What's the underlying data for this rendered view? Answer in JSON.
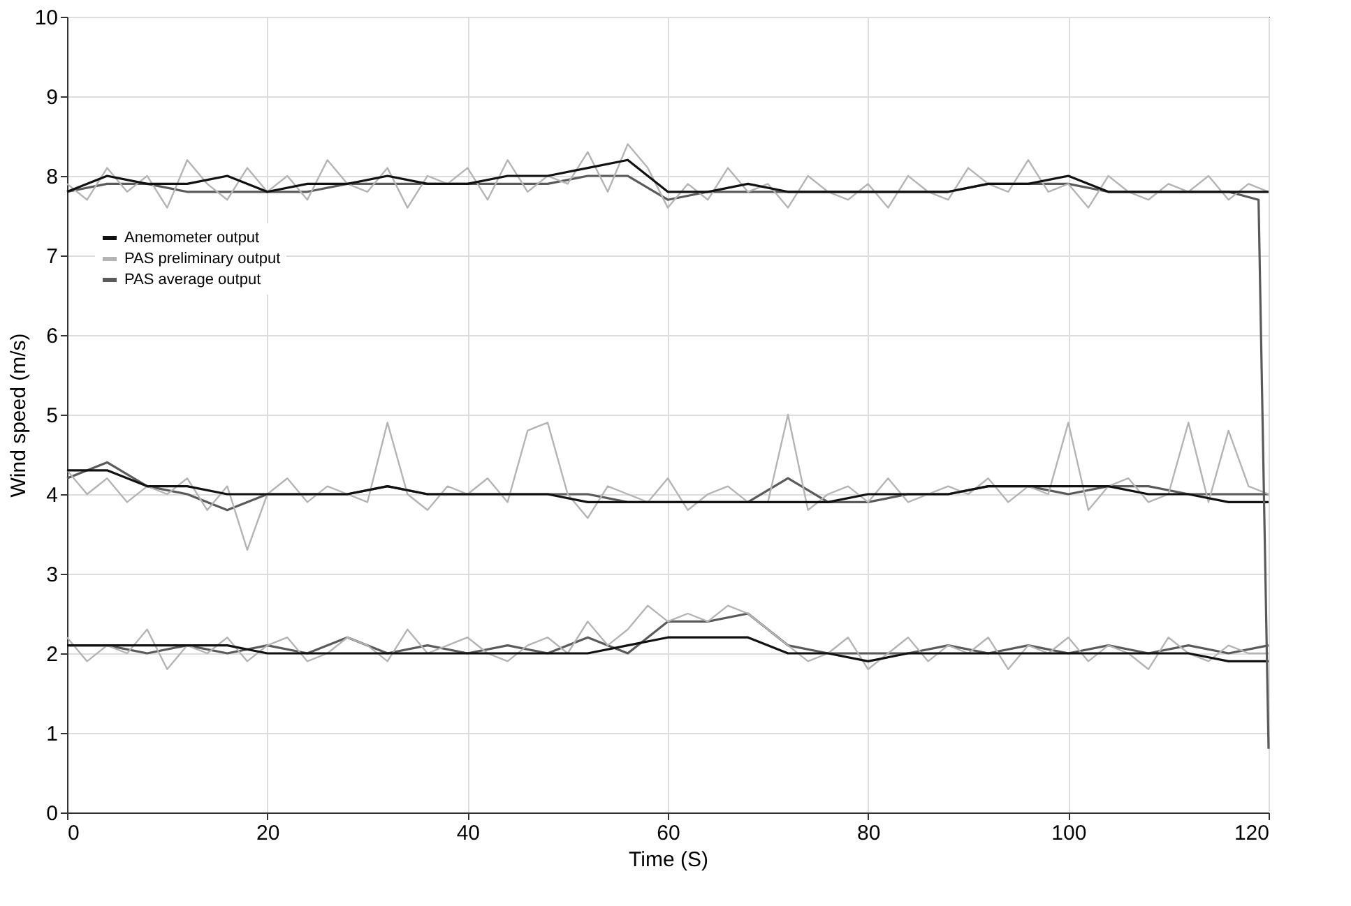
{
  "chart_data": {
    "type": "line",
    "xlabel": "Time (S)",
    "ylabel": "Wind speed (m/s)",
    "x": [
      0,
      4,
      8,
      12,
      16,
      20,
      24,
      28,
      32,
      36,
      40,
      44,
      48,
      52,
      56,
      60,
      64,
      68,
      72,
      76,
      80,
      84,
      88,
      92,
      96,
      100,
      104,
      108,
      112,
      116,
      120
    ],
    "xlim": [
      0,
      120
    ],
    "xticks": [
      0,
      20,
      40,
      60,
      80,
      100,
      120
    ],
    "ylim": [
      0,
      10
    ],
    "yticks": [
      0,
      1,
      2,
      3,
      4,
      5,
      6,
      7,
      8,
      9,
      10
    ],
    "grid": true,
    "legend": "left",
    "series": [
      {
        "name": "Anemometer output",
        "color": "#111111",
        "values": [
          7.8,
          8.0,
          7.9,
          7.9,
          8.0,
          7.8,
          7.9,
          7.9,
          8.0,
          7.9,
          7.9,
          8.0,
          8.0,
          8.1,
          8.2,
          7.8,
          7.8,
          7.9,
          7.8,
          7.8,
          7.8,
          7.8,
          7.8,
          7.9,
          7.9,
          8.0,
          7.8,
          7.8,
          7.8,
          7.8,
          7.8
        ]
      },
      {
        "name": "PAS preliminary output",
        "color": "#b4b4b4",
        "x": [
          0,
          2,
          4,
          6,
          8,
          10,
          12,
          14,
          16,
          18,
          20,
          22,
          24,
          26,
          28,
          30,
          32,
          34,
          36,
          38,
          40,
          42,
          44,
          46,
          48,
          50,
          52,
          54,
          56,
          58,
          60,
          62,
          64,
          66,
          68,
          70,
          72,
          74,
          76,
          78,
          80,
          82,
          84,
          86,
          88,
          90,
          92,
          94,
          96,
          98,
          100,
          102,
          104,
          106,
          108,
          110,
          112,
          114,
          116,
          118,
          120
        ],
        "values": [
          7.9,
          7.7,
          8.1,
          7.8,
          8.0,
          7.6,
          8.2,
          7.9,
          7.7,
          8.1,
          7.8,
          8.0,
          7.7,
          8.2,
          7.9,
          7.8,
          8.1,
          7.6,
          8.0,
          7.9,
          8.1,
          7.7,
          8.2,
          7.8,
          8.0,
          7.9,
          8.3,
          7.8,
          8.4,
          8.1,
          7.6,
          7.9,
          7.7,
          8.1,
          7.8,
          7.9,
          7.6,
          8.0,
          7.8,
          7.7,
          7.9,
          7.6,
          8.0,
          7.8,
          7.7,
          8.1,
          7.9,
          7.8,
          8.2,
          7.8,
          7.9,
          7.6,
          8.0,
          7.8,
          7.7,
          7.9,
          7.8,
          8.0,
          7.7,
          7.9,
          7.8
        ]
      },
      {
        "name": "PAS average output",
        "color": "#5a5a5a",
        "x": [
          0,
          4,
          8,
          12,
          16,
          20,
          24,
          28,
          32,
          36,
          40,
          44,
          48,
          52,
          56,
          60,
          64,
          68,
          72,
          76,
          80,
          84,
          88,
          92,
          96,
          100,
          104,
          108,
          112,
          116,
          119,
          120
        ],
        "values": [
          7.8,
          7.9,
          7.9,
          7.8,
          7.8,
          7.8,
          7.8,
          7.9,
          7.9,
          7.9,
          7.9,
          7.9,
          7.9,
          8.0,
          8.0,
          7.7,
          7.8,
          7.8,
          7.8,
          7.8,
          7.8,
          7.8,
          7.8,
          7.9,
          7.9,
          7.9,
          7.8,
          7.8,
          7.8,
          7.8,
          7.7,
          0.8
        ]
      },
      {
        "color": "#111111",
        "values": [
          4.3,
          4.3,
          4.1,
          4.1,
          4.0,
          4.0,
          4.0,
          4.0,
          4.1,
          4.0,
          4.0,
          4.0,
          4.0,
          3.9,
          3.9,
          3.9,
          3.9,
          3.9,
          3.9,
          3.9,
          4.0,
          4.0,
          4.0,
          4.1,
          4.1,
          4.1,
          4.1,
          4.0,
          4.0,
          3.9,
          3.9
        ]
      },
      {
        "color": "#b4b4b4",
        "x": [
          0,
          2,
          4,
          6,
          8,
          10,
          12,
          14,
          16,
          18,
          20,
          22,
          24,
          26,
          28,
          30,
          32,
          34,
          36,
          38,
          40,
          42,
          44,
          46,
          48,
          50,
          52,
          54,
          56,
          58,
          60,
          62,
          64,
          66,
          68,
          70,
          72,
          74,
          76,
          78,
          80,
          82,
          84,
          86,
          88,
          90,
          92,
          94,
          96,
          98,
          100,
          102,
          104,
          106,
          108,
          110,
          112,
          114,
          116,
          118,
          120
        ],
        "values": [
          4.3,
          4.0,
          4.2,
          3.9,
          4.1,
          4.0,
          4.2,
          3.8,
          4.1,
          3.3,
          4.0,
          4.2,
          3.9,
          4.1,
          4.0,
          3.9,
          4.9,
          4.0,
          3.8,
          4.1,
          4.0,
          4.2,
          3.9,
          4.8,
          4.9,
          4.0,
          3.7,
          4.1,
          4.0,
          3.9,
          4.2,
          3.8,
          4.0,
          4.1,
          3.9,
          3.9,
          5.0,
          3.8,
          4.0,
          4.1,
          3.9,
          4.2,
          3.9,
          4.0,
          4.1,
          4.0,
          4.2,
          3.9,
          4.1,
          4.0,
          4.9,
          3.8,
          4.1,
          4.2,
          3.9,
          4.0,
          4.9,
          3.9,
          4.8,
          4.1,
          4.0
        ]
      },
      {
        "color": "#5a5a5a",
        "values": [
          4.2,
          4.4,
          4.1,
          4.0,
          3.8,
          4.0,
          4.0,
          4.0,
          4.1,
          4.0,
          4.0,
          4.0,
          4.0,
          4.0,
          3.9,
          3.9,
          3.9,
          3.9,
          4.2,
          3.9,
          3.9,
          4.0,
          4.0,
          4.1,
          4.1,
          4.0,
          4.1,
          4.1,
          4.0,
          4.0,
          4.0
        ]
      },
      {
        "color": "#111111",
        "values": [
          2.1,
          2.1,
          2.1,
          2.1,
          2.1,
          2.0,
          2.0,
          2.0,
          2.0,
          2.0,
          2.0,
          2.0,
          2.0,
          2.0,
          2.1,
          2.2,
          2.2,
          2.2,
          2.0,
          2.0,
          1.9,
          2.0,
          2.0,
          2.0,
          2.0,
          2.0,
          2.0,
          2.0,
          2.0,
          1.9,
          1.9
        ]
      },
      {
        "color": "#b4b4b4",
        "x": [
          0,
          2,
          4,
          6,
          8,
          10,
          12,
          14,
          16,
          18,
          20,
          22,
          24,
          26,
          28,
          30,
          32,
          34,
          36,
          38,
          40,
          42,
          44,
          46,
          48,
          50,
          52,
          54,
          56,
          58,
          60,
          62,
          64,
          66,
          68,
          70,
          72,
          74,
          76,
          78,
          80,
          82,
          84,
          86,
          88,
          90,
          92,
          94,
          96,
          98,
          100,
          102,
          104,
          106,
          108,
          110,
          112,
          114,
          116,
          118,
          120
        ],
        "values": [
          2.2,
          1.9,
          2.1,
          2.0,
          2.3,
          1.8,
          2.1,
          2.0,
          2.2,
          1.9,
          2.1,
          2.2,
          1.9,
          2.0,
          2.2,
          2.1,
          1.9,
          2.3,
          2.0,
          2.1,
          2.2,
          2.0,
          1.9,
          2.1,
          2.2,
          2.0,
          2.4,
          2.1,
          2.3,
          2.6,
          2.4,
          2.5,
          2.4,
          2.6,
          2.5,
          2.3,
          2.1,
          1.9,
          2.0,
          2.2,
          1.8,
          2.0,
          2.2,
          1.9,
          2.1,
          2.0,
          2.2,
          1.8,
          2.1,
          2.0,
          2.2,
          1.9,
          2.1,
          2.0,
          1.8,
          2.2,
          2.0,
          1.9,
          2.1,
          2.0,
          2.0
        ]
      },
      {
        "color": "#5a5a5a",
        "values": [
          2.1,
          2.1,
          2.0,
          2.1,
          2.0,
          2.1,
          2.0,
          2.2,
          2.0,
          2.1,
          2.0,
          2.1,
          2.0,
          2.2,
          2.0,
          2.4,
          2.4,
          2.5,
          2.1,
          2.0,
          2.0,
          2.0,
          2.1,
          2.0,
          2.1,
          2.0,
          2.1,
          2.0,
          2.1,
          2.0,
          2.1
        ]
      }
    ]
  }
}
